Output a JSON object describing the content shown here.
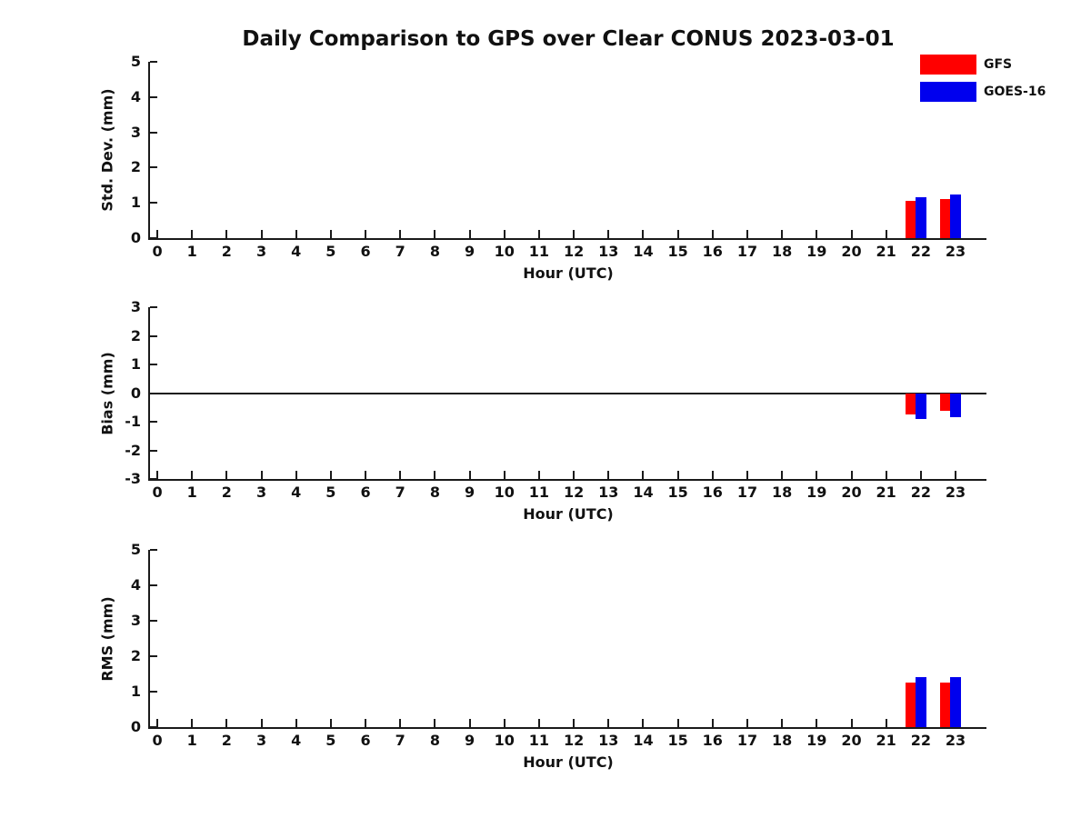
{
  "title": "Daily Comparison to GPS over Clear CONUS 2023-03-01",
  "legend": {
    "position": "upper-right",
    "items": [
      {
        "label": "GFS",
        "color": "#ff0000"
      },
      {
        "label": "GOES-16",
        "color": "#0000ee"
      }
    ]
  },
  "colors": {
    "axis": "#1a1a1a",
    "text": "#111111",
    "background": "#ffffff"
  },
  "chart_data": [
    {
      "type": "bar",
      "panel": "std-dev",
      "ylabel": "Std. Dev. (mm)",
      "xlabel": "Hour (UTC)",
      "ylim": [
        0,
        5
      ],
      "yticks": [
        0,
        1,
        2,
        3,
        4,
        5
      ],
      "xlim": [
        -0.21,
        23.89
      ],
      "xticks": [
        0,
        1,
        2,
        3,
        4,
        5,
        6,
        7,
        8,
        9,
        10,
        11,
        12,
        13,
        14,
        15,
        16,
        17,
        18,
        19,
        20,
        21,
        22,
        23
      ],
      "x": [
        22,
        23
      ],
      "bar_width": 0.3,
      "grid": false,
      "zero_line": false,
      "series": [
        {
          "name": "GFS",
          "color": "#ff0000",
          "offset": -0.3,
          "values": [
            1.06,
            1.12
          ]
        },
        {
          "name": "GOES-16",
          "color": "#0000ee",
          "offset": 0.0,
          "values": [
            1.15,
            1.23
          ]
        }
      ]
    },
    {
      "type": "bar",
      "panel": "bias",
      "ylabel": "Bias (mm)",
      "xlabel": "Hour (UTC)",
      "ylim": [
        -3,
        3
      ],
      "yticks": [
        -3,
        -2,
        -1,
        0,
        1,
        2,
        3
      ],
      "xlim": [
        -0.21,
        23.89
      ],
      "xticks": [
        0,
        1,
        2,
        3,
        4,
        5,
        6,
        7,
        8,
        9,
        10,
        11,
        12,
        13,
        14,
        15,
        16,
        17,
        18,
        19,
        20,
        21,
        22,
        23
      ],
      "x": [
        22,
        23
      ],
      "bar_width": 0.3,
      "grid": false,
      "zero_line": true,
      "series": [
        {
          "name": "GFS",
          "color": "#ff0000",
          "offset": -0.3,
          "values": [
            -0.75,
            -0.63
          ]
        },
        {
          "name": "GOES-16",
          "color": "#0000ee",
          "offset": 0.0,
          "values": [
            -0.9,
            -0.83
          ]
        }
      ]
    },
    {
      "type": "bar",
      "panel": "rms",
      "ylabel": "RMS (mm)",
      "xlabel": "Hour (UTC)",
      "ylim": [
        0,
        5
      ],
      "yticks": [
        0,
        1,
        2,
        3,
        4,
        5
      ],
      "xlim": [
        -0.21,
        23.89
      ],
      "xticks": [
        0,
        1,
        2,
        3,
        4,
        5,
        6,
        7,
        8,
        9,
        10,
        11,
        12,
        13,
        14,
        15,
        16,
        17,
        18,
        19,
        20,
        21,
        22,
        23
      ],
      "x": [
        22,
        23
      ],
      "bar_width": 0.3,
      "grid": false,
      "zero_line": false,
      "series": [
        {
          "name": "GFS",
          "color": "#ff0000",
          "offset": -0.3,
          "values": [
            1.26,
            1.25
          ]
        },
        {
          "name": "GOES-16",
          "color": "#0000ee",
          "offset": 0.0,
          "values": [
            1.41,
            1.41
          ]
        }
      ]
    }
  ]
}
